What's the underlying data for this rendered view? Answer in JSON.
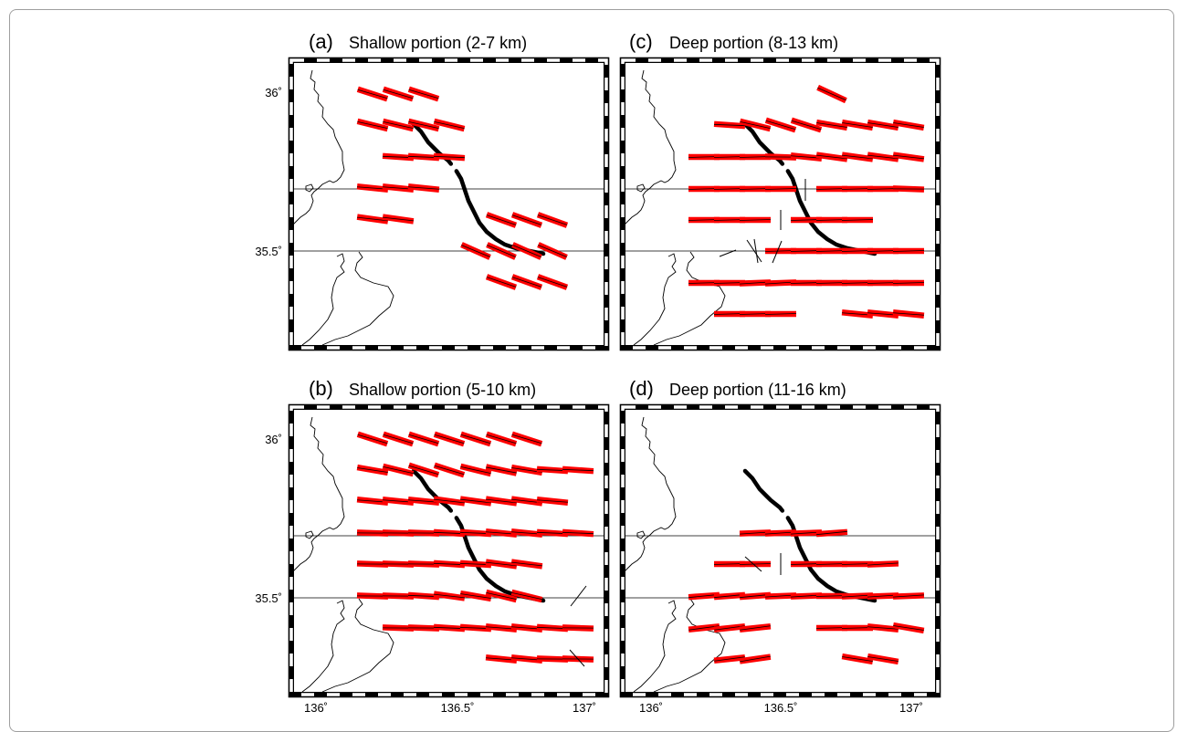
{
  "figure": {
    "panels": [
      {
        "id": "a",
        "letter": "(a)",
        "title": "Shallow portion (2-7 km)"
      },
      {
        "id": "c",
        "letter": "(c)",
        "title": "Deep portion (8-13 km)"
      },
      {
        "id": "b",
        "letter": "(b)",
        "title": "Shallow portion (5-10 km)"
      },
      {
        "id": "d",
        "letter": "(d)",
        "title": "Deep portion (11-16 km)"
      }
    ],
    "y_ticks": [
      "36˚",
      "35.5˚"
    ],
    "x_ticks": [
      "136˚",
      "136.5˚",
      "137˚"
    ],
    "colors": {
      "bar": "#ff0000",
      "fault": "#000000",
      "coast": "#000000"
    }
  }
}
